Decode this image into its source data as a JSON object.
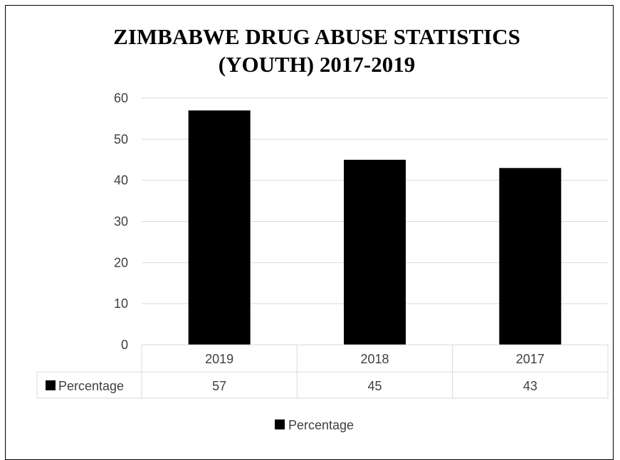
{
  "chart_data": {
    "type": "bar",
    "title_lines": [
      "ZIMBABWE DRUG ABUSE STATISTICS",
      "(YOUTH) 2017-2019"
    ],
    "categories": [
      "2019",
      "2018",
      "2017"
    ],
    "series": [
      {
        "name": "Percentage",
        "values": [
          57,
          45,
          43
        ],
        "color": "#000000"
      }
    ],
    "y_ticks": [
      "0",
      "10",
      "20",
      "30",
      "40",
      "50",
      "60"
    ],
    "ylim": [
      0,
      60
    ],
    "grid": true,
    "data_table": true,
    "legend_position": "bottom",
    "legend_label": "Percentage",
    "colors": {
      "bar": "#000000",
      "grid": "#d9d9d9",
      "text": "#404040",
      "frame": "#000000"
    }
  }
}
